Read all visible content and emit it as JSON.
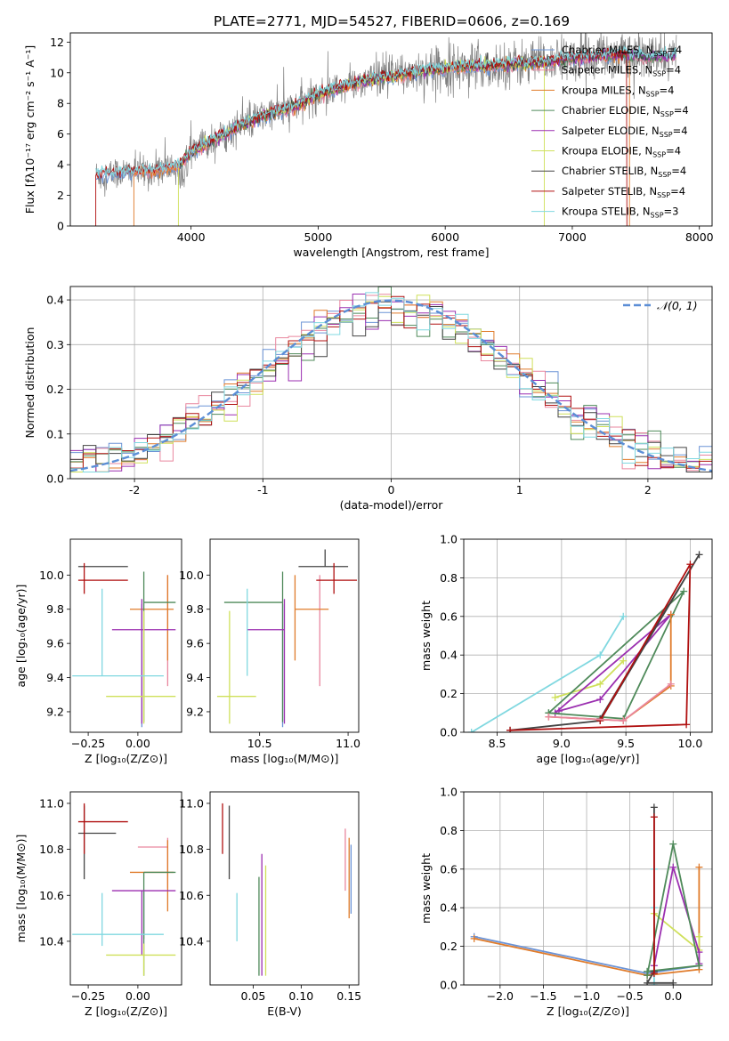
{
  "figure": {
    "title": "PLATE=2771, MJD=54527, FIBERID=0606, z=0.169"
  },
  "colors": {
    "Chabrier MILES": "#6b93d6",
    "Salpeter MILES": "#e9879f",
    "Kroupa MILES": "#e07b2a",
    "Chabrier ELODIE": "#4f8a5a",
    "Salpeter ELODIE": "#9b2fb0",
    "Kroupa ELODIE": "#cfe05a",
    "Chabrier STELIB": "#444444",
    "Salpeter STELIB": "#b01010",
    "Kroupa STELIB": "#80d8e0",
    "data": "#808080",
    "normal_curve": "#5b8ed6"
  },
  "chart_data": [
    {
      "id": "spectrum",
      "type": "line",
      "xlabel": "wavelength [Angstrom, rest frame]",
      "ylabel": "Flux [fλ10⁻¹⁷ erg cm⁻² s⁻¹ A⁻¹]",
      "xlim": [
        3050,
        8100
      ],
      "ylim": [
        0,
        12.6
      ],
      "xticks": [
        4000,
        5000,
        6000,
        7000,
        8000
      ],
      "yticks": [
        0,
        2,
        4,
        6,
        8,
        10,
        12
      ],
      "legend_position": "upper right",
      "legend": [
        "Chabrier MILES, N_SSP=4",
        "Salpeter MILES, N_SSP=4",
        "Kroupa MILES, N_SSP=4",
        "Chabrier ELODIE, N_SSP=4",
        "Salpeter ELODIE, N_SSP=4",
        "Kroupa ELODIE, N_SSP=4",
        "Chabrier STELIB, N_SSP=4",
        "Salpeter STELIB, N_SSP=4",
        "Kroupa STELIB, N_SSP=3"
      ],
      "legend_series": [
        "Chabrier MILES",
        "Salpeter MILES",
        "Kroupa MILES",
        "Chabrier ELODIE",
        "Salpeter ELODIE",
        "Kroupa ELODIE",
        "Chabrier STELIB",
        "Salpeter STELIB",
        "Kroupa STELIB"
      ],
      "continuum_x": [
        3250,
        3500,
        3700,
        3900,
        4000,
        4200,
        4400,
        4600,
        4800,
        5000,
        5200,
        5400,
        5600,
        5800,
        6000,
        6200,
        6400,
        6600,
        6800,
        7000,
        7200,
        7400,
        7600,
        7800
      ],
      "continuum_y": [
        3.3,
        3.5,
        3.6,
        3.9,
        4.8,
        5.7,
        6.6,
        7.3,
        7.7,
        8.6,
        9.1,
        9.5,
        9.8,
        10.1,
        10.3,
        10.4,
        10.5,
        10.6,
        10.7,
        11.0,
        11.1,
        11.2,
        11.0,
        11.1
      ],
      "model_ranges": [
        [
          3250,
          7450
        ],
        [
          3550,
          7820
        ],
        [
          3550,
          7450
        ],
        [
          3900,
          7820
        ],
        [
          3900,
          7820
        ],
        [
          3900,
          6780
        ],
        [
          3900,
          7820
        ],
        [
          3250,
          7430
        ],
        [
          3250,
          7820
        ]
      ]
    },
    {
      "id": "residuals",
      "type": "histogram",
      "xlabel": "(data-model)/error",
      "ylabel": "Normed distribution",
      "xlim": [
        -2.5,
        2.5
      ],
      "ylim": [
        0,
        0.43
      ],
      "xticks": [
        -2,
        -1,
        0,
        1,
        2
      ],
      "yticks": [
        0.0,
        0.1,
        0.2,
        0.3,
        0.4
      ],
      "legend": "𝒩(0, 1)",
      "legend_position": "upper right",
      "bins": {
        "start": -2.5,
        "width": 0.1,
        "count": 50
      }
    },
    {
      "id": "age_vs_Z",
      "type": "errorbar",
      "xlabel": "Z [log₁₀(Z/Z⊙)]",
      "ylabel": "age  [log₁₀(age/yr)]",
      "xlim": [
        -0.34,
        0.22
      ],
      "ylim": [
        9.08,
        10.21
      ],
      "xticks": [
        -0.25,
        0.0
      ],
      "xtick_labels": [
        "−0.25",
        "0.00"
      ],
      "yticks": [
        9.2,
        9.4,
        9.6,
        9.8,
        10.0
      ],
      "points": [
        {
          "series": "Chabrier MILES",
          "x": 0.02,
          "xerr": [
            0.0,
            0.0
          ],
          "y": 9.79,
          "yerr": [
            0.68,
            0.04
          ]
        },
        {
          "series": "Salpeter MILES",
          "x": 0.15,
          "xerr": [
            0.0,
            0.0
          ],
          "y": 9.8,
          "yerr": [
            0.45,
            0.2
          ]
        },
        {
          "series": "Kroupa MILES",
          "x": 0.15,
          "xerr": [
            0.19,
            0.03
          ],
          "y": 9.8,
          "yerr": [
            0.3,
            0.2
          ]
        },
        {
          "series": "Chabrier ELODIE",
          "x": 0.03,
          "xerr": [
            0.0,
            0.16
          ],
          "y": 9.84,
          "yerr": [
            0.7,
            0.18
          ]
        },
        {
          "series": "Salpeter ELODIE",
          "x": 0.02,
          "xerr": [
            0.15,
            0.17
          ],
          "y": 9.68,
          "yerr": [
            0.55,
            0.18
          ]
        },
        {
          "series": "Kroupa ELODIE",
          "x": 0.03,
          "xerr": [
            0.19,
            0.16
          ],
          "y": 9.29,
          "yerr": [
            0.16,
            0.5
          ]
        },
        {
          "series": "Chabrier STELIB",
          "x": -0.27,
          "xerr": [
            0.03,
            0.22
          ],
          "y": 10.05,
          "yerr": [
            0.0,
            0.0
          ]
        },
        {
          "series": "Salpeter STELIB",
          "x": -0.27,
          "xerr": [
            0.03,
            0.22
          ],
          "y": 9.97,
          "yerr": [
            0.08,
            0.1
          ]
        },
        {
          "series": "Kroupa STELIB",
          "x": -0.18,
          "xerr": [
            0.15,
            0.31
          ],
          "y": 9.41,
          "yerr": [
            0.0,
            0.51
          ]
        }
      ]
    },
    {
      "id": "age_vs_mass",
      "type": "errorbar",
      "xlabel": "mass [log₁₀(M/M⊙)]",
      "ylabel": "",
      "xlim": [
        10.22,
        11.06
      ],
      "ylim": [
        9.08,
        10.21
      ],
      "xticks": [
        10.5,
        11.0
      ],
      "xtick_labels": [
        "10.5",
        "11.0"
      ],
      "yticks": [
        9.2,
        9.4,
        9.6,
        9.8,
        10.0
      ],
      "points": [
        {
          "series": "Chabrier MILES",
          "x": 10.63,
          "xerr": [
            0.0,
            0.0
          ],
          "y": 9.79,
          "yerr": [
            0.68,
            0.04
          ]
        },
        {
          "series": "Salpeter MILES",
          "x": 10.84,
          "xerr": [
            0.0,
            0.0
          ],
          "y": 9.8,
          "yerr": [
            0.45,
            0.2
          ]
        },
        {
          "series": "Kroupa MILES",
          "x": 10.7,
          "xerr": [
            0.0,
            0.19
          ],
          "y": 9.8,
          "yerr": [
            0.3,
            0.2
          ]
        },
        {
          "series": "Chabrier ELODIE",
          "x": 10.63,
          "xerr": [
            0.33,
            0.0
          ],
          "y": 9.84,
          "yerr": [
            0.7,
            0.18
          ]
        },
        {
          "series": "Salpeter ELODIE",
          "x": 10.64,
          "xerr": [
            0.21,
            0.0
          ],
          "y": 9.68,
          "yerr": [
            0.55,
            0.18
          ]
        },
        {
          "series": "Kroupa ELODIE",
          "x": 10.33,
          "xerr": [
            0.07,
            0.15
          ],
          "y": 9.29,
          "yerr": [
            0.16,
            0.5
          ]
        },
        {
          "series": "Chabrier STELIB",
          "x": 10.87,
          "xerr": [
            0.15,
            0.13
          ],
          "y": 10.05,
          "yerr": [
            0.0,
            0.1
          ]
        },
        {
          "series": "Salpeter STELIB",
          "x": 10.92,
          "xerr": [
            0.1,
            0.13
          ],
          "y": 9.97,
          "yerr": [
            0.08,
            0.1
          ]
        },
        {
          "series": "Kroupa STELIB",
          "x": 10.43,
          "xerr": [
            0.0,
            0.0
          ],
          "y": 9.41,
          "yerr": [
            0.0,
            0.51
          ]
        }
      ]
    },
    {
      "id": "weight_vs_age",
      "type": "line",
      "xlabel": "age  [log₁₀(age/yr)]",
      "ylabel": "mass weight",
      "xlim": [
        8.24,
        10.17
      ],
      "ylim": [
        0,
        1
      ],
      "xticks": [
        8.5,
        9.0,
        9.5,
        10.0
      ],
      "xtick_labels": [
        "8.5",
        "9.0",
        "9.5",
        "10.0"
      ],
      "yticks": [
        0.0,
        0.2,
        0.4,
        0.6,
        0.8,
        1.0
      ],
      "series": [
        {
          "series": "Kroupa STELIB",
          "x": [
            8.3,
            9.3,
            9.48
          ],
          "y": [
            0.0,
            0.4,
            0.6
          ]
        },
        {
          "series": "Kroupa ELODIE",
          "x": [
            8.95,
            9.3,
            9.48
          ],
          "y": [
            0.18,
            0.25,
            0.37
          ]
        },
        {
          "series": "Salpeter ELODIE",
          "x": [
            8.98,
            9.3,
            9.85,
            8.95
          ],
          "y": [
            0.11,
            0.17,
            0.61,
            0.1
          ]
        },
        {
          "series": "Chabrier ELODIE",
          "x": [
            8.9,
            9.48,
            9.95,
            8.9
          ],
          "y": [
            0.1,
            0.07,
            0.73,
            0.1
          ]
        },
        {
          "series": "Chabrier STELIB",
          "x": [
            8.6,
            9.3,
            10.07,
            9.3
          ],
          "y": [
            0.01,
            0.06,
            0.92,
            0.07
          ]
        },
        {
          "series": "Salpeter STELIB",
          "x": [
            8.6,
            9.97,
            10.0,
            9.3
          ],
          "y": [
            0.01,
            0.04,
            0.87,
            0.06
          ]
        },
        {
          "series": "Kroupa MILES",
          "x": [
            8.9,
            9.48,
            9.85,
            9.85
          ],
          "y": [
            0.08,
            0.06,
            0.24,
            0.61
          ]
        },
        {
          "series": "Salpeter MILES",
          "x": [
            8.9,
            9.48,
            9.85
          ],
          "y": [
            0.08,
            0.06,
            0.25
          ]
        }
      ]
    },
    {
      "id": "mass_vs_Z",
      "type": "errorbar",
      "xlabel": "Z [log₁₀(Z/Z⊙)]",
      "ylabel": "mass [log₁₀(M/M⊙)]",
      "xlim": [
        -0.34,
        0.22
      ],
      "ylim": [
        10.21,
        11.05
      ],
      "xticks": [
        -0.25,
        0.0
      ],
      "xtick_labels": [
        "−0.25",
        "0.00"
      ],
      "yticks": [
        10.4,
        10.6,
        10.8,
        11.0
      ],
      "points": [
        {
          "series": "Chabrier MILES",
          "x": 0.03,
          "xerr": [
            0.0,
            0.0
          ],
          "y": 10.62,
          "yerr": [
            0.21,
            0.0
          ]
        },
        {
          "series": "Salpeter MILES",
          "x": 0.15,
          "xerr": [
            0.15,
            0.0
          ],
          "y": 10.81,
          "yerr": [
            0.18,
            0.04
          ]
        },
        {
          "series": "Kroupa MILES",
          "x": 0.15,
          "xerr": [
            0.19,
            0.03
          ],
          "y": 10.7,
          "yerr": [
            0.17,
            0.14
          ]
        },
        {
          "series": "Chabrier ELODIE",
          "x": 0.03,
          "xerr": [
            0.0,
            0.16
          ],
          "y": 10.7,
          "yerr": [
            0.45,
            0.0
          ]
        },
        {
          "series": "Salpeter ELODIE",
          "x": 0.02,
          "xerr": [
            0.15,
            0.17
          ],
          "y": 10.62,
          "yerr": [
            0.28,
            0.0
          ]
        },
        {
          "series": "Kroupa ELODIE",
          "x": 0.03,
          "xerr": [
            0.19,
            0.16
          ],
          "y": 10.34,
          "yerr": [
            0.09,
            0.05
          ]
        },
        {
          "series": "Chabrier STELIB",
          "x": -0.27,
          "xerr": [
            0.03,
            0.16
          ],
          "y": 10.87,
          "yerr": [
            0.2,
            0.12
          ]
        },
        {
          "series": "Salpeter STELIB",
          "x": -0.27,
          "xerr": [
            0.03,
            0.22
          ],
          "y": 10.92,
          "yerr": [
            0.14,
            0.08
          ]
        },
        {
          "series": "Kroupa STELIB",
          "x": -0.18,
          "xerr": [
            0.15,
            0.31
          ],
          "y": 10.43,
          "yerr": [
            0.05,
            0.18
          ]
        }
      ]
    },
    {
      "id": "mass_vs_ebv",
      "type": "errorbar",
      "xlabel": "E(B-V)",
      "ylabel": "",
      "xlim": [
        0.005,
        0.16
      ],
      "ylim": [
        10.21,
        11.05
      ],
      "xticks": [
        0.05,
        0.1,
        0.15
      ],
      "xtick_labels": [
        "0.05",
        "0.10",
        "0.15"
      ],
      "yticks": [
        10.4,
        10.6,
        10.8,
        11.0
      ],
      "points": [
        {
          "series": "Salpeter STELIB",
          "x": 0.018,
          "xerr": [
            0.0,
            0.0
          ],
          "y": 10.9,
          "yerr": [
            0.12,
            0.1
          ]
        },
        {
          "series": "Chabrier STELIB",
          "x": 0.025,
          "xerr": [
            0.0,
            0.0
          ],
          "y": 10.87,
          "yerr": [
            0.2,
            0.12
          ]
        },
        {
          "series": "Kroupa STELIB",
          "x": 0.033,
          "xerr": [
            0.0,
            0.0
          ],
          "y": 10.5,
          "yerr": [
            0.1,
            0.11
          ]
        },
        {
          "series": "Chabrier ELODIE",
          "x": 0.056,
          "xerr": [
            0.0,
            0.0
          ],
          "y": 10.49,
          "yerr": [
            0.24,
            0.19
          ]
        },
        {
          "series": "Salpeter ELODIE",
          "x": 0.059,
          "xerr": [
            0.0,
            0.0
          ],
          "y": 10.55,
          "yerr": [
            0.3,
            0.23
          ]
        },
        {
          "series": "Kroupa ELODIE",
          "x": 0.063,
          "xerr": [
            0.0,
            0.0
          ],
          "y": 10.5,
          "yerr": [
            0.25,
            0.23
          ]
        },
        {
          "series": "Salpeter MILES",
          "x": 0.146,
          "xerr": [
            0.0,
            0.0
          ],
          "y": 10.76,
          "yerr": [
            0.14,
            0.13
          ]
        },
        {
          "series": "Kroupa MILES",
          "x": 0.15,
          "xerr": [
            0.0,
            0.0
          ],
          "y": 10.7,
          "yerr": [
            0.2,
            0.15
          ]
        },
        {
          "series": "Chabrier MILES",
          "x": 0.152,
          "xerr": [
            0.0,
            0.0
          ],
          "y": 10.62,
          "yerr": [
            0.1,
            0.2
          ]
        }
      ]
    },
    {
      "id": "weight_vs_Z",
      "type": "line",
      "xlabel": "Z [log₁₀(Z/Z⊙)]",
      "ylabel": "mass weight",
      "xlim": [
        -2.42,
        0.45
      ],
      "ylim": [
        0,
        1
      ],
      "xticks": [
        -2.0,
        -1.5,
        -1.0,
        -0.5,
        0.0
      ],
      "xtick_labels": [
        "−2.0",
        "−1.5",
        "−1.0",
        "−0.5",
        "0.0"
      ],
      "yticks": [
        0.0,
        0.2,
        0.4,
        0.6,
        0.8,
        1.0
      ],
      "series": [
        {
          "series": "Chabrier MILES",
          "x": [
            -2.3,
            -0.3,
            0.3
          ],
          "y": [
            0.25,
            0.06,
            0.1
          ]
        },
        {
          "series": "Kroupa MILES",
          "x": [
            -2.3,
            -0.3,
            0.3,
            0.3
          ],
          "y": [
            0.24,
            0.05,
            0.08,
            0.61
          ]
        },
        {
          "series": "Kroupa STELIB",
          "x": [
            -0.22,
            -0.22,
            -0.22
          ],
          "y": [
            0.0,
            0.4,
            0.6
          ]
        },
        {
          "series": "Kroupa ELODIE",
          "x": [
            -0.22,
            0.3,
            0.3
          ],
          "y": [
            0.37,
            0.18,
            0.25
          ]
        },
        {
          "series": "Salpeter ELODIE",
          "x": [
            -0.22,
            0.0,
            0.3,
            0.3
          ],
          "y": [
            0.1,
            0.61,
            0.17,
            0.11
          ]
        },
        {
          "series": "Chabrier ELODIE",
          "x": [
            -0.3,
            0.0,
            0.3,
            -0.3
          ],
          "y": [
            0.05,
            0.73,
            0.1,
            0.07
          ]
        },
        {
          "series": "Chabrier STELIB",
          "x": [
            -0.22,
            -0.22,
            -0.3,
            0.0
          ],
          "y": [
            0.92,
            0.07,
            0.01,
            0.01
          ]
        },
        {
          "series": "Salpeter STELIB",
          "x": [
            -0.22,
            -0.22
          ],
          "y": [
            0.87,
            0.06
          ]
        }
      ]
    }
  ]
}
